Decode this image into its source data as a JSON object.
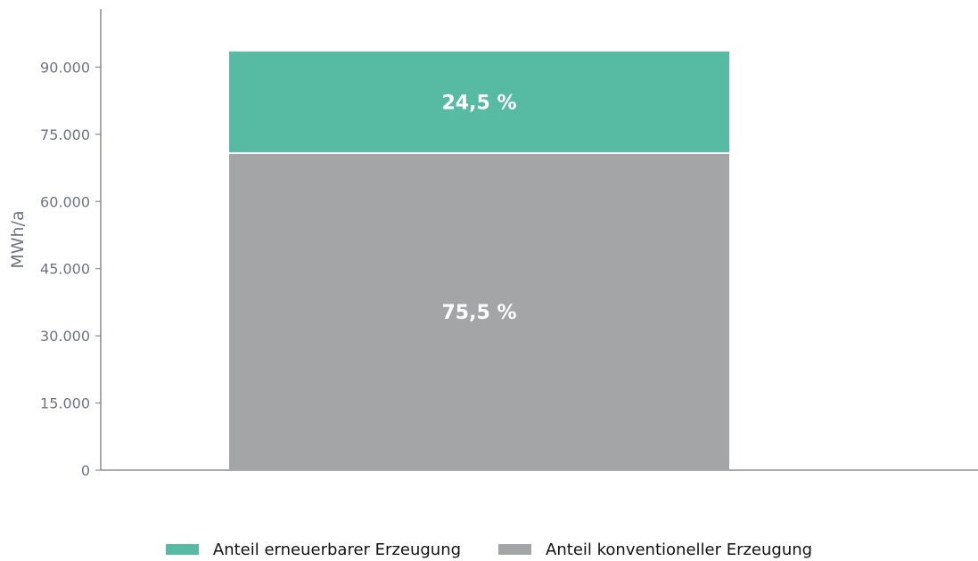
{
  "chart_data": {
    "type": "bar",
    "stacked": true,
    "ylabel": "MWh/a",
    "xlabel": "",
    "ylim": [
      0,
      103000
    ],
    "yticks": [
      0,
      15000,
      30000,
      45000,
      60000,
      75000,
      90000
    ],
    "ytick_labels": [
      "0",
      "15.000",
      "30.000",
      "45.000",
      "60.000",
      "75.000",
      "90.000"
    ],
    "categories": [
      ""
    ],
    "series": [
      {
        "name": "Anteil konventioneller Erzeugung",
        "values": [
          70800
        ],
        "label": "75,5 %",
        "color": "#a4a5a7"
      },
      {
        "name": "Anteil erneuerbarer Erzeugung",
        "values": [
          22900
        ],
        "label": "24,5 %",
        "color": "#57baa3"
      }
    ],
    "legend": {
      "position": "bottom",
      "items": [
        {
          "name": "Anteil erneuerbarer Erzeugung",
          "color": "#57baa3"
        },
        {
          "name": "Anteil konventioneller Erzeugung",
          "color": "#a4a5a7"
        }
      ]
    },
    "grid": false
  }
}
